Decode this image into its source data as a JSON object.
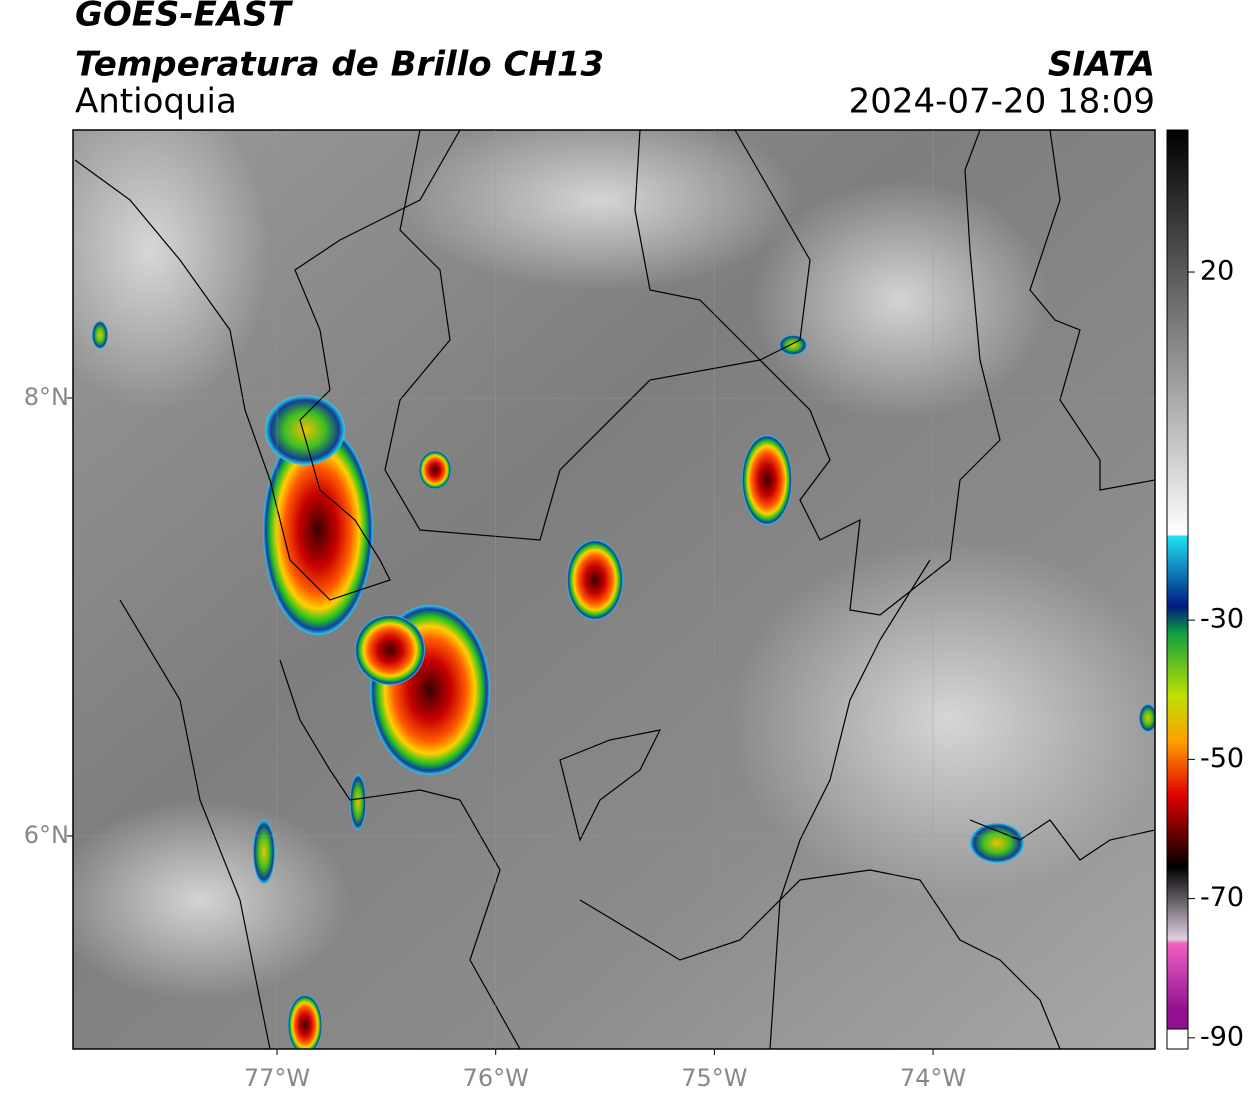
{
  "header": {
    "title": "GOES-EAST",
    "subtitle": "Temperatura de Brillo CH13",
    "region": "Antioquia",
    "source": "SIATA",
    "datetime": "2024-07-20 18:09"
  },
  "map": {
    "lon_range": [
      -77.933,
      -72.985
    ],
    "lat_range": [
      5.027,
      9.224
    ],
    "lon_ticks": [
      {
        "value": -77,
        "label": "77°W"
      },
      {
        "value": -76,
        "label": "76°W"
      },
      {
        "value": -75,
        "label": "75°W"
      },
      {
        "value": -74,
        "label": "74°W"
      }
    ],
    "lat_ticks": [
      {
        "value": 8,
        "label": "8°N"
      },
      {
        "value": 6,
        "label": "6°N"
      }
    ]
  },
  "colorbar": {
    "range": [
      -91.6,
      40.4
    ],
    "ticks": [
      20,
      -30,
      -50,
      -70,
      -90
    ]
  }
}
